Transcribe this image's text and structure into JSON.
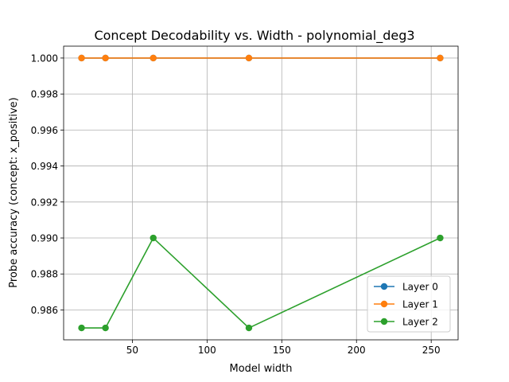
{
  "chart_data": {
    "type": "line",
    "title": "Concept Decodability vs. Width - polynomial_deg3",
    "xlabel": "Model width",
    "ylabel": "Probe accuracy (concept: x_positive)",
    "x": [
      16,
      32,
      64,
      128,
      256
    ],
    "xlim": [
      4,
      268
    ],
    "ylim": [
      0.98434,
      1.00066
    ],
    "xticks": [
      50,
      100,
      150,
      200,
      250
    ],
    "yticks": [
      0.986,
      0.988,
      0.99,
      0.992,
      0.994,
      0.996,
      0.998,
      1.0
    ],
    "xtick_labels": [
      "50",
      "100",
      "150",
      "200",
      "250"
    ],
    "ytick_labels": [
      "0.986",
      "0.988",
      "0.990",
      "0.992",
      "0.994",
      "0.996",
      "0.998",
      "1.000"
    ],
    "grid": true,
    "legend_position": "lower-right",
    "series": [
      {
        "name": "Layer 0",
        "color": "#1f77b4",
        "values": [
          1.0,
          1.0,
          1.0,
          1.0,
          1.0
        ]
      },
      {
        "name": "Layer 1",
        "color": "#ff7f0e",
        "values": [
          1.0,
          1.0,
          1.0,
          1.0,
          1.0
        ]
      },
      {
        "name": "Layer 2",
        "color": "#2ca02c",
        "values": [
          0.985,
          0.985,
          0.99,
          0.985,
          0.99
        ]
      }
    ]
  }
}
